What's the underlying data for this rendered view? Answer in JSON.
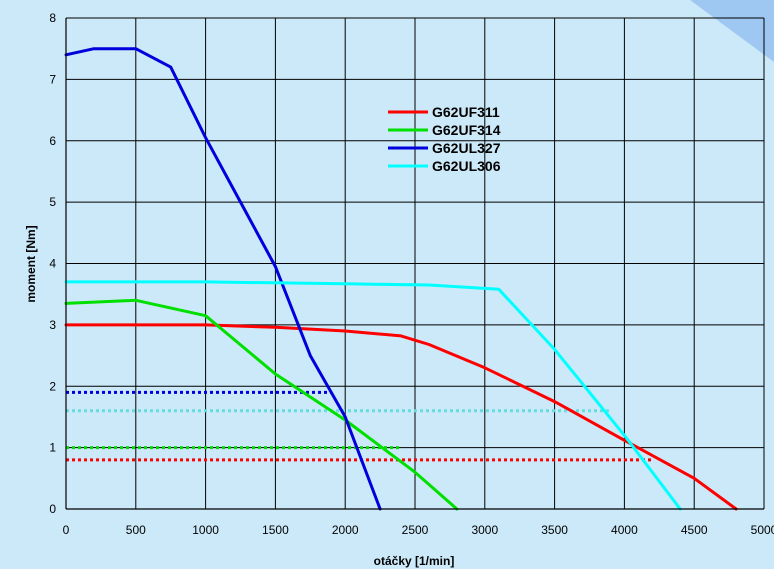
{
  "chart_data": {
    "type": "line",
    "title": "",
    "xlabel": "otáčky [1/min]",
    "ylabel": "moment [Nm]",
    "xlim": [
      0,
      5000
    ],
    "ylim": [
      0,
      8
    ],
    "x_ticks": [
      0,
      500,
      1000,
      1500,
      2000,
      2500,
      3000,
      3500,
      4000,
      4500,
      5000
    ],
    "y_ticks": [
      0,
      1,
      2,
      3,
      4,
      5,
      6,
      7,
      8
    ],
    "grid": true,
    "legend_position": "top-right",
    "series": [
      {
        "name": "G62UF311",
        "color": "#ff0000",
        "points": [
          [
            0,
            3.0
          ],
          [
            1000,
            3.0
          ],
          [
            1500,
            2.96
          ],
          [
            2000,
            2.9
          ],
          [
            2400,
            2.82
          ],
          [
            2600,
            2.68
          ],
          [
            3000,
            2.3
          ],
          [
            3500,
            1.75
          ],
          [
            4000,
            1.12
          ],
          [
            4500,
            0.5
          ],
          [
            4800,
            0.0
          ]
        ]
      },
      {
        "name": "G62UF314",
        "color": "#00e000",
        "points": [
          [
            0,
            3.35
          ],
          [
            500,
            3.4
          ],
          [
            1000,
            3.15
          ],
          [
            1500,
            2.2
          ],
          [
            2000,
            1.45
          ],
          [
            2500,
            0.6
          ],
          [
            2800,
            0.0
          ]
        ]
      },
      {
        "name": "G62UL327",
        "color": "#0000dd",
        "points": [
          [
            0,
            7.4
          ],
          [
            200,
            7.5
          ],
          [
            500,
            7.5
          ],
          [
            750,
            7.2
          ],
          [
            1000,
            6.05
          ],
          [
            1250,
            5.0
          ],
          [
            1500,
            3.95
          ],
          [
            1750,
            2.5
          ],
          [
            2000,
            1.5
          ],
          [
            2250,
            0.0
          ]
        ]
      },
      {
        "name": "G62UL306",
        "color": "#00ffff",
        "points": [
          [
            0,
            3.7
          ],
          [
            1000,
            3.7
          ],
          [
            2000,
            3.67
          ],
          [
            2600,
            3.65
          ],
          [
            3100,
            3.58
          ],
          [
            3500,
            2.6
          ],
          [
            4000,
            1.2
          ],
          [
            4400,
            0.0
          ]
        ]
      }
    ],
    "reference_lines": [
      {
        "series": "G62UL327",
        "color": "#0000dd",
        "y": 1.9,
        "x_end": 1900
      },
      {
        "series": "G62UL306",
        "color": "#66dddd",
        "y": 1.6,
        "x_end": 3900
      },
      {
        "series": "G62UF314",
        "color": "#00e000",
        "y": 1.0,
        "x_end": 2400
      },
      {
        "series": "G62UF311",
        "color": "#ff0000",
        "y": 0.8,
        "x_end": 4200
      }
    ]
  }
}
